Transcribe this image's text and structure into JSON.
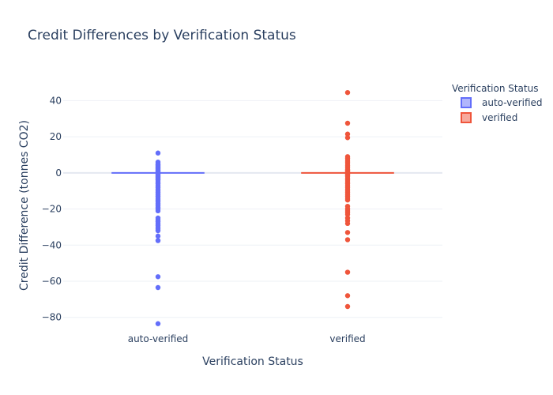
{
  "chart_data": {
    "type": "box",
    "title": "Credit Differences by Verification Status",
    "xlabel": "Verification Status",
    "ylabel": "Credit Difference (tonnes CO2)",
    "categories": [
      "auto-verified",
      "verified"
    ],
    "ylim": [
      -88,
      52
    ],
    "yticks": [
      40,
      20,
      0,
      -20,
      -40,
      -60,
      -80
    ],
    "yticklabels": [
      "40",
      "20",
      "0",
      "−20",
      "−40",
      "−60",
      "−80"
    ],
    "grid": true,
    "legend": {
      "title": "Verification Status",
      "placement": "top-right"
    },
    "series": [
      {
        "name": "auto-verified",
        "category": "auto-verified",
        "color": "#636efa",
        "median": 0,
        "points": [
          11,
          6,
          5,
          4.5,
          4,
          3.5,
          3,
          2.5,
          2,
          1.5,
          1,
          0.5,
          0,
          -0.5,
          -1,
          -1.5,
          -2,
          -2.5,
          -3,
          -3.5,
          -4,
          -5,
          -6,
          -7,
          -8,
          -9,
          -10,
          -11,
          -12,
          -13,
          -14,
          -15,
          -16,
          -17,
          -18,
          -19,
          -20,
          -21,
          -25,
          -26,
          -27,
          -28,
          -29,
          -30,
          -31,
          -32,
          -35,
          -37.5,
          -57.5,
          -63.5,
          -83.5
        ]
      },
      {
        "name": "verified",
        "category": "verified",
        "color": "#ef553b",
        "median": 0,
        "points": [
          44.5,
          27.5,
          21.5,
          19.5,
          9,
          8,
          7,
          6,
          5,
          4,
          3,
          2,
          1.5,
          1,
          0.5,
          0,
          -0.5,
          -1,
          -1.5,
          -2,
          -3,
          -4,
          -5,
          -6,
          -7,
          -8,
          -9,
          -10,
          -11,
          -12,
          -13,
          -14,
          -15,
          -18.5,
          -20,
          -21,
          -22,
          -23,
          -25,
          -26.5,
          -28,
          -33,
          -37,
          -55,
          -68,
          -74
        ]
      }
    ]
  }
}
